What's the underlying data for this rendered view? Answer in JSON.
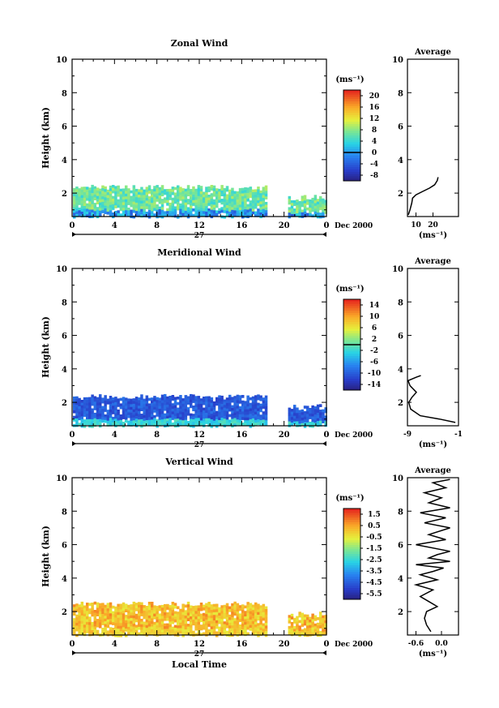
{
  "figure": {
    "date_label": "Dec 2000",
    "day_label": "27",
    "xlabel": "Local Time"
  },
  "chart_data": [
    {
      "type": "heatmap",
      "title": "Zonal Wind",
      "ylabel": "Height (km)",
      "xlabel": "",
      "x_ticks": [
        "0",
        "4",
        "8",
        "12",
        "16",
        "20",
        "0"
      ],
      "x_range": [
        0,
        24
      ],
      "y_ticks": [
        "2",
        "4",
        "6",
        "8",
        "10"
      ],
      "ylim": [
        0.6,
        10
      ],
      "colorbar": {
        "unit": "(ms⁻¹)",
        "tick_labels": [
          "20",
          "16",
          "12",
          "8",
          "4",
          "0",
          "-4",
          "-8"
        ],
        "range": [
          -10,
          22
        ],
        "zero_line": 0
      },
      "data_summary": {
        "coverage_top_km": 2.4,
        "dominant_range": [
          4,
          10
        ],
        "near_surface_range": [
          -4,
          4
        ]
      },
      "profile": {
        "title": "Average",
        "xlabel": "(ms⁻¹)",
        "x_ticks": [
          "10",
          "20"
        ],
        "xlim": [
          5,
          35
        ],
        "ylim": [
          0.6,
          10
        ],
        "y_ticks": [
          "2",
          "4",
          "6",
          "8",
          "10"
        ],
        "points": [
          [
            5.5,
            0.7
          ],
          [
            6.5,
            1.0
          ],
          [
            7.5,
            1.4
          ],
          [
            8,
            1.7
          ],
          [
            10,
            1.9
          ],
          [
            14,
            2.1
          ],
          [
            18,
            2.3
          ],
          [
            21,
            2.5
          ],
          [
            22.5,
            2.75
          ],
          [
            23,
            2.95
          ]
        ]
      }
    },
    {
      "type": "heatmap",
      "title": "Meridional Wind",
      "ylabel": "Height (km)",
      "xlabel": "",
      "x_ticks": [
        "0",
        "4",
        "8",
        "12",
        "16",
        "20",
        "0"
      ],
      "x_range": [
        0,
        24
      ],
      "y_ticks": [
        "2",
        "4",
        "6",
        "8",
        "10"
      ],
      "ylim": [
        0.6,
        10
      ],
      "colorbar": {
        "unit": "(ms⁻¹)",
        "tick_labels": [
          "14",
          "10",
          "6",
          "2",
          "-2",
          "-6",
          "-10",
          "-14"
        ],
        "range": [
          -16,
          16
        ],
        "zero_line": 0
      },
      "data_summary": {
        "coverage_top_km": 2.4,
        "dominant_range": [
          -12,
          -8
        ],
        "near_surface_range": [
          -4,
          0
        ]
      },
      "profile": {
        "title": "Average",
        "xlabel": "(ms⁻¹)",
        "x_ticks": [
          "-9",
          "-1"
        ],
        "xlim": [
          -9,
          -1
        ],
        "ylim": [
          0.6,
          10
        ],
        "y_ticks": [
          "2",
          "4",
          "6",
          "8",
          "10"
        ],
        "points": [
          [
            -1.5,
            0.8
          ],
          [
            -4,
            1.0
          ],
          [
            -7,
            1.2
          ],
          [
            -8.5,
            1.6
          ],
          [
            -8.8,
            2.0
          ],
          [
            -8.3,
            2.3
          ],
          [
            -7.6,
            2.6
          ],
          [
            -8.6,
            3.0
          ],
          [
            -8.9,
            3.3
          ],
          [
            -7.6,
            3.5
          ],
          [
            -6.9,
            3.6
          ]
        ]
      }
    },
    {
      "type": "heatmap",
      "title": "Vertical Wind",
      "ylabel": "Height (km)",
      "xlabel": "",
      "x_ticks": [
        "0",
        "4",
        "8",
        "12",
        "16",
        "20",
        "0"
      ],
      "x_range": [
        0,
        24
      ],
      "y_ticks": [
        "2",
        "4",
        "6",
        "8",
        "10"
      ],
      "ylim": [
        0.6,
        10
      ],
      "colorbar": {
        "unit": "(ms⁻¹)",
        "tick_labels": [
          "1.5",
          "0.5",
          "-0.5",
          "-1.5",
          "-2.5",
          "-3.5",
          "-4.5",
          "-5.5"
        ],
        "range": [
          -6,
          2
        ],
        "zero_line": null
      },
      "data_summary": {
        "coverage_top_km": 2.5,
        "dominant_range": [
          -0.5,
          1.0
        ],
        "near_surface_range": [
          -0.5,
          0.5
        ]
      },
      "profile": {
        "title": "Average",
        "xlabel": "(ms⁻¹)",
        "x_ticks": [
          "-0.6",
          "0.0"
        ],
        "xlim": [
          -0.8,
          0.4
        ],
        "ylim": [
          0.6,
          10
        ],
        "y_ticks": [
          "2",
          "4",
          "6",
          "8",
          "10"
        ],
        "points": [
          [
            -0.25,
            0.8
          ],
          [
            -0.35,
            1.2
          ],
          [
            -0.4,
            1.6
          ],
          [
            -0.35,
            2.0
          ],
          [
            -0.1,
            2.3
          ],
          [
            -0.3,
            2.6
          ],
          [
            -0.5,
            2.9
          ],
          [
            -0.2,
            3.3
          ],
          [
            -0.6,
            3.6
          ],
          [
            -0.1,
            3.9
          ],
          [
            -0.5,
            4.2
          ],
          [
            -0.2,
            4.4
          ],
          [
            0.05,
            4.6
          ],
          [
            -0.6,
            4.8
          ],
          [
            0.2,
            5.0
          ],
          [
            -0.3,
            5.2
          ],
          [
            -0.1,
            5.4
          ],
          [
            0.2,
            5.6
          ],
          [
            -0.6,
            6.0
          ],
          [
            0.1,
            6.3
          ],
          [
            -0.3,
            6.6
          ],
          [
            0.2,
            7.0
          ],
          [
            -0.4,
            7.3
          ],
          [
            0.1,
            7.6
          ],
          [
            -0.5,
            7.9
          ],
          [
            0.2,
            8.2
          ],
          [
            -0.3,
            8.5
          ],
          [
            0.0,
            8.8
          ],
          [
            -0.4,
            9.1
          ],
          [
            0.1,
            9.4
          ],
          [
            -0.2,
            9.7
          ],
          [
            0.2,
            9.9
          ]
        ]
      }
    }
  ]
}
